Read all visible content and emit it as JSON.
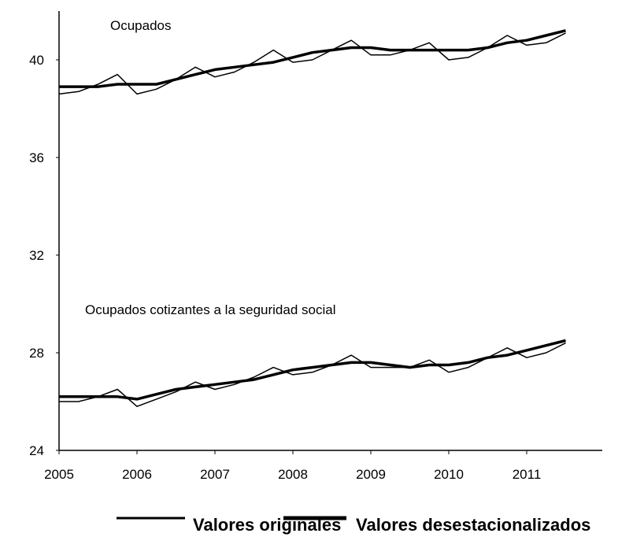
{
  "chart_data": {
    "type": "line",
    "x": [
      2005,
      2005.25,
      2005.5,
      2005.75,
      2006,
      2006.25,
      2006.5,
      2006.75,
      2007,
      2007.25,
      2007.5,
      2007.75,
      2008,
      2008.25,
      2008.5,
      2008.75,
      2009,
      2009.25,
      2009.5,
      2009.75,
      2010,
      2010.25,
      2010.5,
      2010.75,
      2011,
      2011.25,
      2011.5
    ],
    "series": [
      {
        "name": "Valores originales",
        "color": "#000000",
        "width": 1.5
      },
      {
        "name": "Valores desestacionalizados",
        "color": "#000000",
        "width": 3.5
      }
    ],
    "groups": [
      {
        "label": "Ocupados",
        "values": [
          [
            38.6,
            38.7,
            39.0,
            39.4,
            38.6,
            38.8,
            39.2,
            39.7,
            39.3,
            39.5,
            39.9,
            40.4,
            39.9,
            40.0,
            40.4,
            40.8,
            40.2,
            40.2,
            40.4,
            40.7,
            40.0,
            40.1,
            40.5,
            41.0,
            40.6,
            40.7,
            41.1
          ],
          [
            38.9,
            38.9,
            38.9,
            39.0,
            39.0,
            39.0,
            39.2,
            39.4,
            39.6,
            39.7,
            39.8,
            39.9,
            40.1,
            40.3,
            40.4,
            40.5,
            40.5,
            40.4,
            40.4,
            40.4,
            40.4,
            40.4,
            40.5,
            40.7,
            40.8,
            41.0,
            41.2
          ]
        ]
      },
      {
        "label": "Ocupados cotizantes a la seguridad social",
        "values": [
          [
            26.0,
            26.0,
            26.2,
            26.5,
            25.8,
            26.1,
            26.4,
            26.8,
            26.5,
            26.7,
            27.0,
            27.4,
            27.1,
            27.2,
            27.5,
            27.9,
            27.4,
            27.4,
            27.4,
            27.7,
            27.2,
            27.4,
            27.8,
            28.2,
            27.8,
            28.0,
            28.4
          ],
          [
            26.2,
            26.2,
            26.2,
            26.2,
            26.1,
            26.3,
            26.5,
            26.6,
            26.7,
            26.8,
            26.9,
            27.1,
            27.3,
            27.4,
            27.5,
            27.6,
            27.6,
            27.5,
            27.4,
            27.5,
            27.5,
            27.6,
            27.8,
            27.9,
            28.1,
            28.3,
            28.5
          ]
        ]
      }
    ],
    "xlim": [
      2005,
      2012
    ],
    "xticks": [
      2005,
      2006,
      2007,
      2008,
      2009,
      2010,
      2011
    ],
    "ylim": [
      24,
      42
    ],
    "yticks": [
      24,
      28,
      32,
      36,
      40
    ]
  }
}
